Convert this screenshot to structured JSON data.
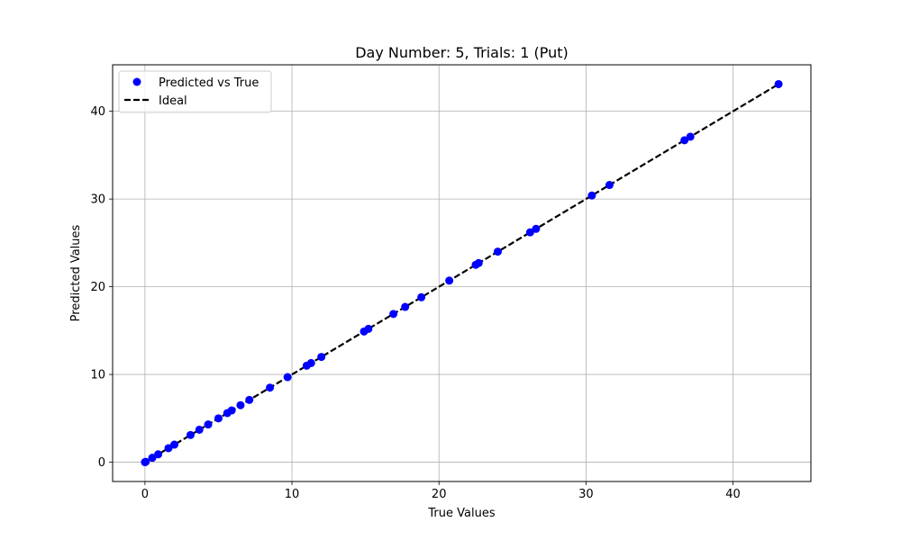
{
  "chart_data": {
    "type": "scatter",
    "title": "Day Number: 5, Trials: 1 (Put)",
    "xlabel": "True Values",
    "ylabel": "Predicted Values",
    "xlim": [
      -2.2,
      45.3
    ],
    "ylim": [
      -2.2,
      45.3
    ],
    "xticks": [
      0,
      10,
      20,
      30,
      40
    ],
    "yticks": [
      0,
      10,
      20,
      30,
      40
    ],
    "grid": true,
    "legend_position": "top-left",
    "series": [
      {
        "name": "Predicted vs True",
        "kind": "scatter",
        "color": "#0000ff",
        "points": [
          {
            "x": 0.0,
            "y": 0.0
          },
          {
            "x": 0.05,
            "y": 0.05
          },
          {
            "x": 0.5,
            "y": 0.5
          },
          {
            "x": 0.9,
            "y": 0.9
          },
          {
            "x": 1.6,
            "y": 1.6
          },
          {
            "x": 2.0,
            "y": 2.0
          },
          {
            "x": 3.1,
            "y": 3.1
          },
          {
            "x": 3.7,
            "y": 3.7
          },
          {
            "x": 4.3,
            "y": 4.3
          },
          {
            "x": 5.0,
            "y": 5.0
          },
          {
            "x": 5.6,
            "y": 5.6
          },
          {
            "x": 5.9,
            "y": 5.9
          },
          {
            "x": 6.5,
            "y": 6.5
          },
          {
            "x": 7.1,
            "y": 7.1
          },
          {
            "x": 8.5,
            "y": 8.5
          },
          {
            "x": 9.7,
            "y": 9.7
          },
          {
            "x": 11.0,
            "y": 11.0
          },
          {
            "x": 11.3,
            "y": 11.3
          },
          {
            "x": 12.0,
            "y": 12.0
          },
          {
            "x": 14.9,
            "y": 14.9
          },
          {
            "x": 15.2,
            "y": 15.2
          },
          {
            "x": 16.9,
            "y": 16.9
          },
          {
            "x": 17.7,
            "y": 17.7
          },
          {
            "x": 18.8,
            "y": 18.8
          },
          {
            "x": 20.7,
            "y": 20.7
          },
          {
            "x": 22.5,
            "y": 22.5
          },
          {
            "x": 22.7,
            "y": 22.7
          },
          {
            "x": 24.0,
            "y": 24.0
          },
          {
            "x": 26.2,
            "y": 26.2
          },
          {
            "x": 26.6,
            "y": 26.6
          },
          {
            "x": 30.4,
            "y": 30.4
          },
          {
            "x": 31.6,
            "y": 31.6
          },
          {
            "x": 36.7,
            "y": 36.7
          },
          {
            "x": 37.1,
            "y": 37.1
          },
          {
            "x": 43.1,
            "y": 43.1
          }
        ]
      },
      {
        "name": "Ideal",
        "kind": "line",
        "style": "dashed",
        "color": "#000000",
        "points": [
          {
            "x": 0.0,
            "y": 0.0
          },
          {
            "x": 43.1,
            "y": 43.1
          }
        ]
      }
    ]
  }
}
